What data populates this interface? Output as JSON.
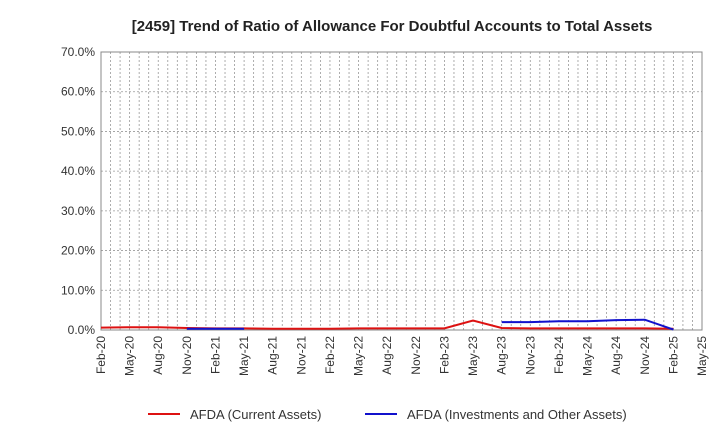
{
  "chart_data": {
    "type": "line",
    "title": "[2459]  Trend of Ratio of Allowance For Doubtful Accounts to Total Assets",
    "xlabel": "",
    "ylabel": "",
    "ylim": [
      0,
      70
    ],
    "y_ticks": [
      "0.0%",
      "10.0%",
      "20.0%",
      "30.0%",
      "40.0%",
      "50.0%",
      "60.0%",
      "70.0%"
    ],
    "y_tick_values": [
      0,
      10,
      20,
      30,
      40,
      50,
      60,
      70
    ],
    "x_labels": [
      "Feb-20",
      "May-20",
      "Aug-20",
      "Nov-20",
      "Feb-21",
      "May-21",
      "Aug-21",
      "Nov-21",
      "Feb-22",
      "May-22",
      "Aug-22",
      "Nov-22",
      "Feb-23",
      "May-23",
      "Aug-23",
      "Nov-23",
      "Feb-24",
      "May-24",
      "Aug-24",
      "Nov-24",
      "Feb-25",
      "May-25"
    ],
    "grid": true,
    "legend_position": "bottom",
    "series": [
      {
        "name": "AFDA (Current Assets)",
        "color": "#dd1111",
        "values": [
          0.6,
          0.7,
          0.7,
          0.5,
          0.4,
          0.4,
          0.3,
          0.3,
          0.3,
          0.4,
          0.4,
          0.4,
          0.4,
          2.4,
          0.5,
          0.4,
          0.4,
          0.4,
          0.4,
          0.4,
          0.3,
          null
        ]
      },
      {
        "name": "AFDA (Investments and Other Assets)",
        "color": "#1111cc",
        "values": [
          null,
          null,
          null,
          0.3,
          0.3,
          0.3,
          null,
          null,
          null,
          null,
          null,
          null,
          null,
          null,
          2.0,
          2.0,
          2.2,
          2.2,
          2.5,
          2.6,
          0.1,
          null
        ]
      }
    ]
  }
}
